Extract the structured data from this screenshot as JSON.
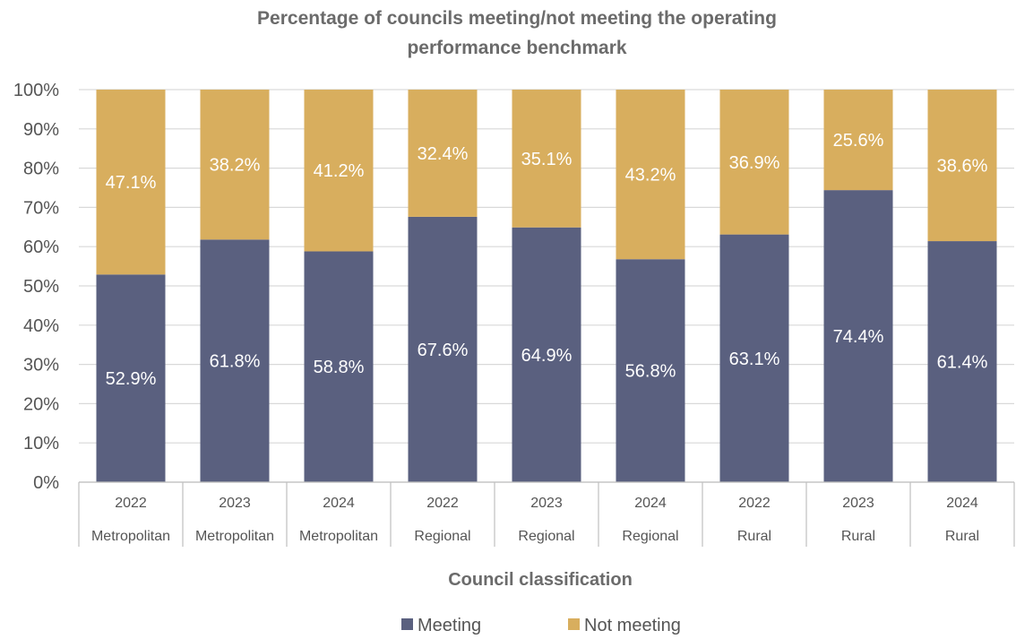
{
  "chart_data": {
    "type": "bar",
    "stacked": true,
    "title": "Percentage of councils meeting/not meeting the operating performance benchmark",
    "xlabel": "Council classification",
    "ylabel": "",
    "ylim": [
      0,
      100
    ],
    "y_ticks": [
      "0%",
      "10%",
      "20%",
      "30%",
      "40%",
      "50%",
      "60%",
      "70%",
      "80%",
      "90%",
      "100%"
    ],
    "grid": true,
    "legend_position": "bottom",
    "categories": [
      {
        "year": "2022",
        "group": "Metropolitan"
      },
      {
        "year": "2023",
        "group": "Metropolitan"
      },
      {
        "year": "2024",
        "group": "Metropolitan"
      },
      {
        "year": "2022",
        "group": "Regional"
      },
      {
        "year": "2023",
        "group": "Regional"
      },
      {
        "year": "2024",
        "group": "Regional"
      },
      {
        "year": "2022",
        "group": "Rural"
      },
      {
        "year": "2023",
        "group": "Rural"
      },
      {
        "year": "2024",
        "group": "Rural"
      }
    ],
    "series": [
      {
        "name": "Meeting",
        "color": "#5a607f",
        "values": [
          52.9,
          61.8,
          58.8,
          67.6,
          64.9,
          56.8,
          63.1,
          74.4,
          61.4
        ],
        "labels": [
          "52.9%",
          "61.8%",
          "58.8%",
          "67.6%",
          "64.9%",
          "56.8%",
          "63.1%",
          "74.4%",
          "61.4%"
        ]
      },
      {
        "name": "Not meeting",
        "color": "#d8ae5e",
        "values": [
          47.1,
          38.2,
          41.2,
          32.4,
          35.1,
          43.2,
          36.9,
          25.6,
          38.6
        ],
        "labels": [
          "47.1%",
          "38.2%",
          "41.2%",
          "32.4%",
          "35.1%",
          "43.2%",
          "36.9%",
          "25.6%",
          "38.6%"
        ]
      }
    ]
  }
}
